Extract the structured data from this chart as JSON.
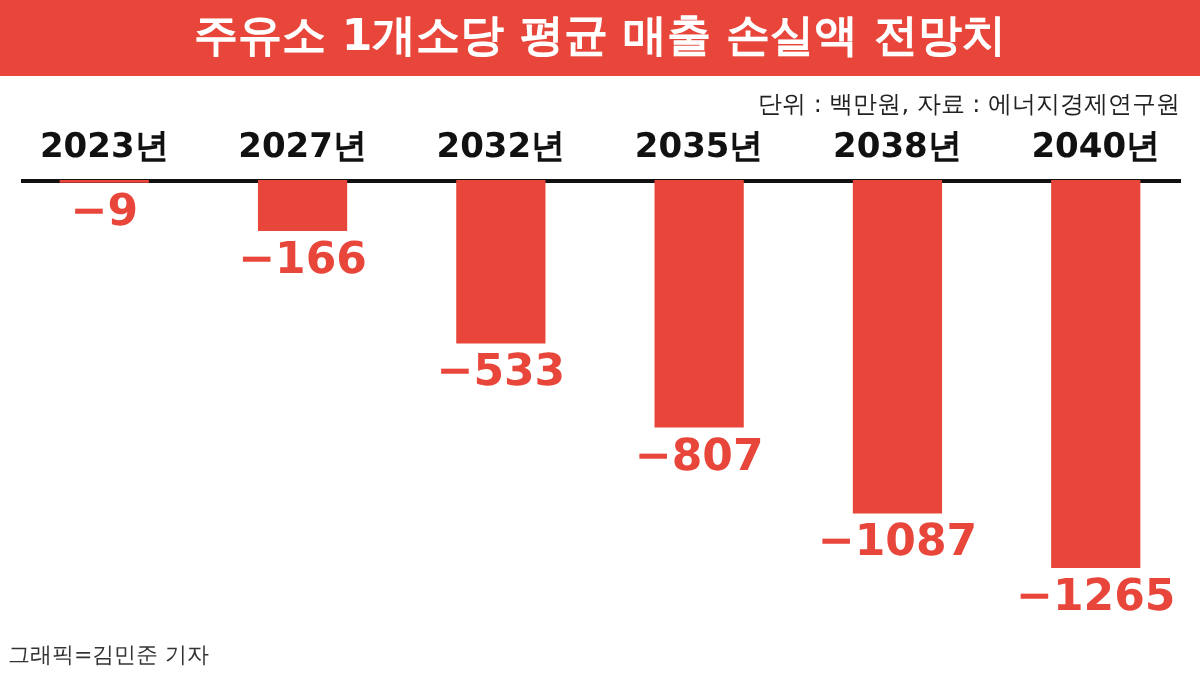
{
  "chart_data": {
    "type": "bar",
    "title": "주유소 1개소당 평균 매출 손실액 전망치",
    "subtitle": "단위 : 백만원, 자료 : 에너지경제연구원",
    "annotations": [
      "그래픽=김민준 기자"
    ],
    "categories": [
      "2023년",
      "2027년",
      "2032년",
      "2035년",
      "2038년",
      "2040년"
    ],
    "values": [
      -9,
      -166,
      -533,
      -807,
      -1087,
      -1265
    ],
    "color": "#e8463a",
    "tick_labels": "x",
    "data_labels": true,
    "grid": false
  }
}
